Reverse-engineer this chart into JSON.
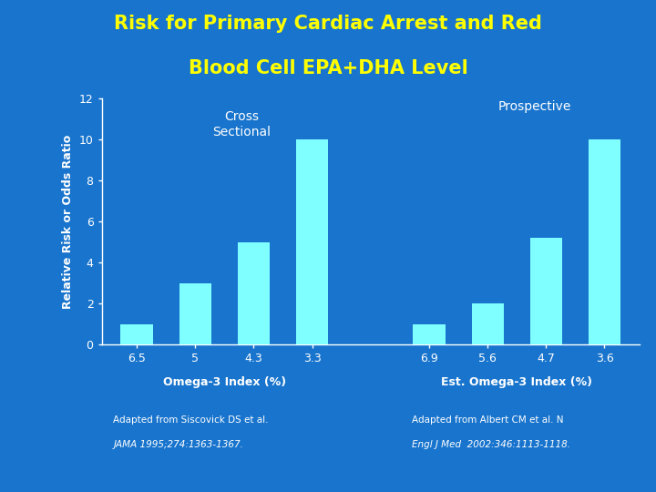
{
  "title_line1": "Risk for Primary Cardiac Arrest and Red",
  "title_line2": "Blood Cell EPA+DHA Level",
  "title_color": "#FFFF00",
  "background_color": "#1874CD",
  "bar_color": "#7FFFFF",
  "ylabel": "Relative Risk or Odds Ratio",
  "ylabel_color": "#FFFFFF",
  "tick_color": "#FFFFFF",
  "ylim": [
    0,
    12
  ],
  "yticks": [
    0,
    2,
    4,
    6,
    8,
    10,
    12
  ],
  "group1_label": "Cross\nSectional",
  "group2_label": "Prospective",
  "group_label_color": "#FFFFFF",
  "group1_xlabel": "Omega-3 Index (%)",
  "group2_xlabel": "Est. Omega-3 Index (%)",
  "xlabel_color": "#FFFFFF",
  "group1_cats": [
    "6.5",
    "5",
    "4.3",
    "3.3"
  ],
  "group1_vals": [
    1,
    3,
    5,
    10
  ],
  "group2_cats": [
    "6.9",
    "5.6",
    "4.7",
    "3.6"
  ],
  "group2_vals": [
    1,
    2,
    5.2,
    10
  ],
  "ref1_normal": "Adapted from Siscovick DS et al.",
  "ref1_italic": "JAMA 1995;274:1363-1367.",
  "ref2_normal": "Adapted from Albert CM et al. N",
  "ref2_italic": "Engl J Med  2002:346:1113-1118.",
  "ref_color": "#FFFFFF",
  "spine_color": "#FFFFFF",
  "bar_width": 0.55
}
